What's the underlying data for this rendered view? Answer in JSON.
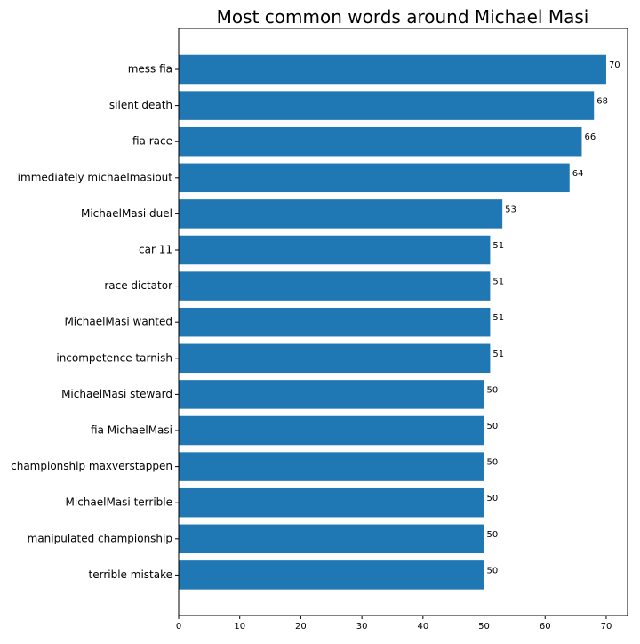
{
  "chart_data": {
    "type": "bar",
    "orientation": "horizontal",
    "title": "Most common words around Michael Masi",
    "xlabel": "",
    "ylabel": "",
    "xlim": [
      0,
      73.5
    ],
    "xticks": [
      0,
      10,
      20,
      30,
      40,
      50,
      60,
      70
    ],
    "grid": false,
    "legend": "none",
    "bar_color": "#1f77b4",
    "categories": [
      "mess fia",
      "silent death",
      "fia race",
      "immediately michaelmasiout",
      "MichaelMasi duel",
      "car 11",
      "race dictator",
      "MichaelMasi wanted",
      "incompetence tarnish",
      "MichaelMasi steward",
      "fia MichaelMasi",
      "championship maxverstappen",
      "MichaelMasi terrible",
      "manipulated championship",
      "terrible mistake"
    ],
    "values": [
      70,
      68,
      66,
      64,
      53,
      51,
      51,
      51,
      51,
      50,
      50,
      50,
      50,
      50,
      50
    ]
  }
}
